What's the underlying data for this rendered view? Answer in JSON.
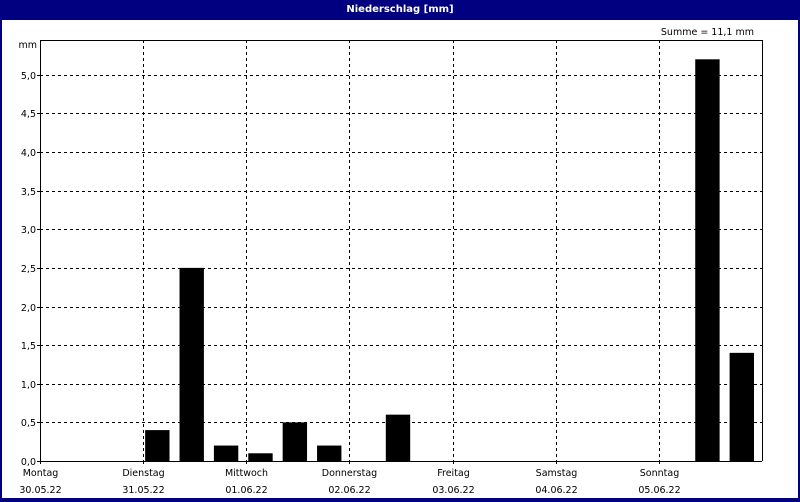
{
  "window": {
    "title": "Niederschlag [mm]",
    "title_bar_color": "#000080"
  },
  "chart_data": {
    "type": "bar",
    "title": "Niederschlag [mm]",
    "ylabel": "mm",
    "annotation": "Summe = 11,1 mm",
    "ylim": [
      0,
      5.45
    ],
    "yticks": [
      {
        "value": 0,
        "label": "0,0"
      },
      {
        "value": 0.5,
        "label": "0,5"
      },
      {
        "value": 1,
        "label": "1,0"
      },
      {
        "value": 1.5,
        "label": "1,5"
      },
      {
        "value": 2,
        "label": "2,0"
      },
      {
        "value": 2.5,
        "label": "2,5"
      },
      {
        "value": 3,
        "label": "3,0"
      },
      {
        "value": 3.5,
        "label": "3,5"
      },
      {
        "value": 4,
        "label": "4,0"
      },
      {
        "value": 4.5,
        "label": "4,5"
      },
      {
        "value": 5,
        "label": "5,0"
      }
    ],
    "days": [
      {
        "weekday": "Montag",
        "date": "30.05.22"
      },
      {
        "weekday": "Dienstag",
        "date": "31.05.22"
      },
      {
        "weekday": "Mittwoch",
        "date": "01.06.22"
      },
      {
        "weekday": "Donnerstag",
        "date": "02.06.22"
      },
      {
        "weekday": "Freitag",
        "date": "03.06.22"
      },
      {
        "weekday": "Samstag",
        "date": "04.06.22"
      },
      {
        "weekday": "Sonntag",
        "date": "05.06.22"
      }
    ],
    "interval_hours": 8,
    "values": [
      0,
      0,
      0,
      0.4,
      2.5,
      0.2,
      0.1,
      0.5,
      0.2,
      0,
      0.6,
      0,
      0,
      0,
      0,
      0,
      0,
      0,
      0,
      5.2,
      1.4
    ],
    "bar_color": "#000000",
    "grid": true
  }
}
